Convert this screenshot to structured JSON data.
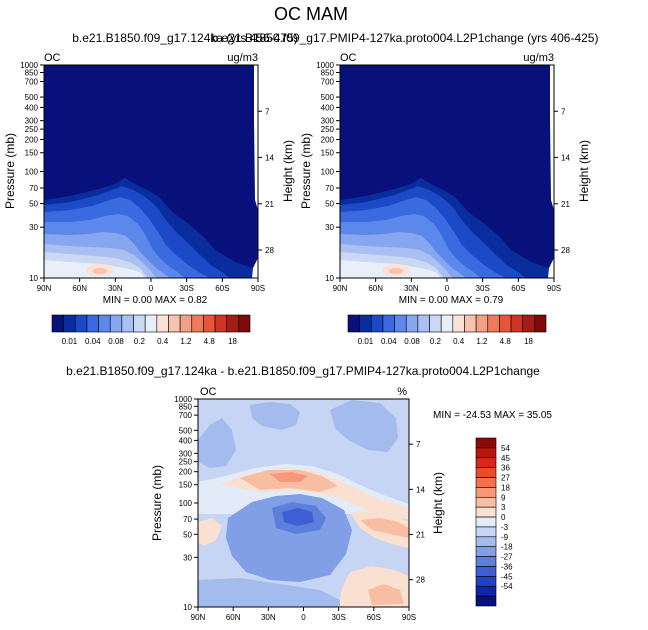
{
  "page_title": "OC MAM",
  "chart_data": [
    {
      "type": "heatmap",
      "title": "b.e21.B1850.f09_g17.124ka (yrs 456-475)",
      "left_label": "OC",
      "right_label": "ug/m3",
      "ylabel": "Pressure (mb)",
      "ylabel_right": "Height (km)",
      "xticks": [
        "90N",
        "60N",
        "30N",
        "0",
        "30S",
        "60S",
        "90S"
      ],
      "yticks": [
        "10",
        "30",
        "50",
        "70",
        "100",
        "150",
        "200",
        "250",
        "300",
        "400",
        "500",
        "700",
        "850",
        "1000"
      ],
      "height_ticks": [
        "28",
        "21",
        "14",
        "7"
      ],
      "min_max": "MIN =  0.00  MAX =  0.82",
      "colorbar": {
        "labels": [
          "0.01",
          "0.04",
          "0.08",
          "0.2",
          "0.4",
          "1.2",
          "4.8",
          "18"
        ],
        "colors": [
          "#08107c",
          "#0a2d9e",
          "#1c49c6",
          "#3a6ae0",
          "#5b88ea",
          "#86a6ef",
          "#aac0f2",
          "#cbd8f4",
          "#e9eff9",
          "#fbe1d6",
          "#f7c2ae",
          "#f29f85",
          "#ed7a5a",
          "#e6543a",
          "#cf3522",
          "#a51c14",
          "#7e0a0a"
        ]
      }
    },
    {
      "type": "heatmap",
      "title": "b.e21.B1850.f09_g17.PMIP4-127ka.proto004.L2P1change (yrs 406-425)",
      "left_label": "OC",
      "right_label": "ug/m3",
      "ylabel": "Pressure (mb)",
      "ylabel_right": "Height (km)",
      "xticks": [
        "90N",
        "60N",
        "30N",
        "0",
        "30S",
        "60S",
        "90S"
      ],
      "yticks": [
        "10",
        "30",
        "50",
        "70",
        "100",
        "150",
        "200",
        "250",
        "300",
        "400",
        "500",
        "700",
        "850",
        "1000"
      ],
      "height_ticks": [
        "28",
        "21",
        "14",
        "7"
      ],
      "min_max": "MIN =  0.00  MAX =  0.79",
      "colorbar": {
        "labels": [
          "0.01",
          "0.04",
          "0.08",
          "0.2",
          "0.4",
          "1.2",
          "4.8",
          "18"
        ],
        "colors": [
          "#08107c",
          "#0a2d9e",
          "#1c49c6",
          "#3a6ae0",
          "#5b88ea",
          "#86a6ef",
          "#aac0f2",
          "#cbd8f4",
          "#e9eff9",
          "#fbe1d6",
          "#f7c2ae",
          "#f29f85",
          "#ed7a5a",
          "#e6543a",
          "#cf3522",
          "#a51c14",
          "#7e0a0a"
        ]
      }
    },
    {
      "type": "heatmap",
      "title": "b.e21.B1850.f09_g17.124ka - b.e21.B1850.f09_g17.PMIP4-127ka.proto004.L2P1change",
      "left_label": "OC",
      "right_label": "%",
      "ylabel": "Pressure (mb)",
      "ylabel_right": "Height (km)",
      "xticks": [
        "90N",
        "60N",
        "30N",
        "0",
        "30S",
        "60S",
        "90S"
      ],
      "yticks": [
        "10",
        "30",
        "50",
        "70",
        "100",
        "150",
        "200",
        "250",
        "300",
        "400",
        "500",
        "700",
        "850",
        "1000"
      ],
      "height_ticks": [
        "28",
        "21",
        "14",
        "7"
      ],
      "min_max": "MIN = -24.53  MAX =  35.05",
      "colorbar": {
        "labels": [
          "54",
          "45",
          "36",
          "27",
          "18",
          "9",
          "3",
          "0",
          "-3",
          "-9",
          "-18",
          "-27",
          "-36",
          "-45",
          "-54"
        ],
        "colors": [
          "#8b0a0a",
          "#b81410",
          "#d9281a",
          "#ed4a2a",
          "#f47150",
          "#f7987a",
          "#f8bea3",
          "#fae0d0",
          "#e3ebf9",
          "#c6d5f4",
          "#a4bbee",
          "#819fe6",
          "#5c7fdc",
          "#3d5fd3",
          "#2540c4",
          "#1224a8",
          "#06107e"
        ]
      }
    }
  ]
}
